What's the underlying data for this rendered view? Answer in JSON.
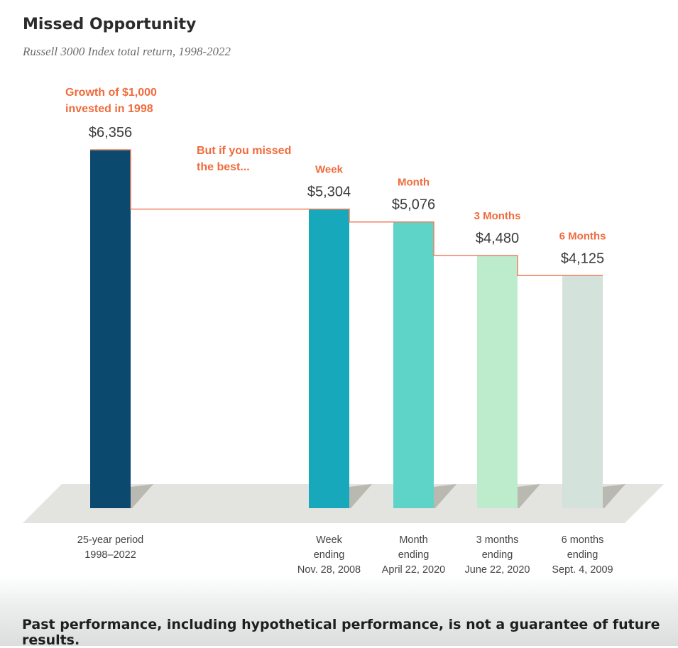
{
  "title": "Missed Opportunity",
  "subtitle": "Russell 3000 Index total return, 1998-2022",
  "disclaimer": "Past performance, including hypothetical performance, is not a guarantee of future results.",
  "chart_data": {
    "type": "bar",
    "title": "Missed Opportunity",
    "subtitle": "Russell 3000 Index total return, 1998-2022",
    "ylabel": "",
    "xlabel": "",
    "ylim": [
      0,
      6356
    ],
    "annotations": {
      "growth": [
        "Growth of $1,000",
        "invested in 1998"
      ],
      "missed": [
        "But if you missed",
        "the best..."
      ]
    },
    "bars": [
      {
        "top_label": "",
        "value": 6356,
        "value_label": "$6,356",
        "category": [
          "25-year period",
          "1998–2022"
        ],
        "color": "#0b4a6e"
      },
      {
        "top_label": "Week",
        "value": 5304,
        "value_label": "$5,304",
        "category": [
          "Week",
          "ending",
          "Nov. 28, 2008"
        ],
        "color": "#17a8bc"
      },
      {
        "top_label": "Month",
        "value": 5076,
        "value_label": "$5,076",
        "category": [
          "Month",
          "ending",
          "April 22, 2020"
        ],
        "color": "#5ed4c9"
      },
      {
        "top_label": "3 Months",
        "value": 4480,
        "value_label": "$4,480",
        "category": [
          "3 months",
          "ending",
          "June 22, 2020"
        ],
        "color": "#bdeccc"
      },
      {
        "top_label": "6 Months",
        "value": 4125,
        "value_label": "$4,125",
        "category": [
          "6 months",
          "ending",
          "Sept. 4, 2009"
        ],
        "color": "#d3e3dc"
      }
    ],
    "colors": {
      "accent": "#f06b3c",
      "connector": "#f08060",
      "floor": "#e3e3df",
      "shadow": "#b9b9b2"
    }
  }
}
